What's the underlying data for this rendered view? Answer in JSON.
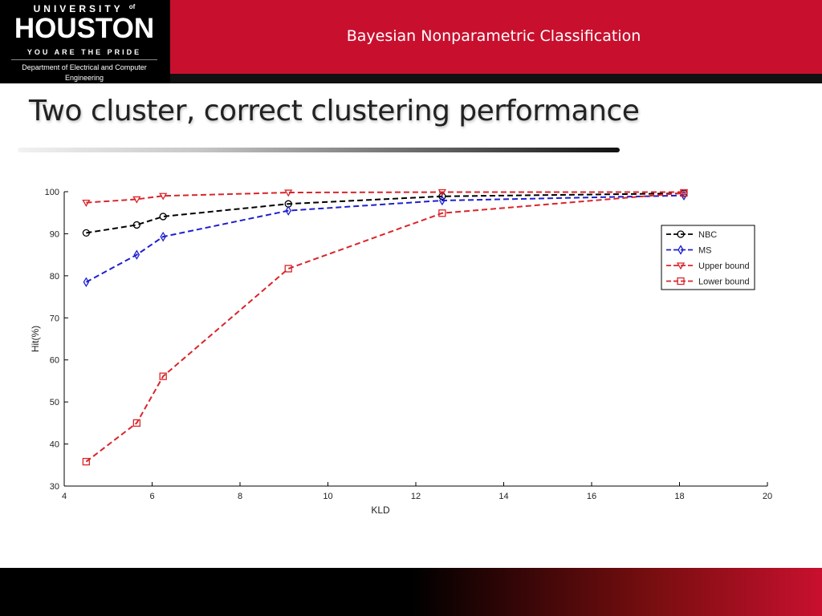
{
  "header": {
    "university_line": "UNIVERSITY",
    "of": "of",
    "houston": "HOUSTON",
    "tagline": "YOU ARE THE PRIDE",
    "department": "Department of Electrical and Computer Engineering",
    "title": "Bayesian Nonparametric Classification"
  },
  "slide": {
    "title": "Two cluster, correct clustering performance"
  },
  "colors": {
    "brand_red": "#c8102e",
    "nbc": "#000000",
    "ms": "#1f1fd0",
    "upper": "#d9252a",
    "lower": "#d9252a"
  },
  "chart_data": {
    "type": "line",
    "xlabel": "KLD",
    "ylabel": "Hit(%)",
    "xlim": [
      4,
      20
    ],
    "ylim": [
      30,
      100
    ],
    "xticks": [
      4,
      6,
      8,
      10,
      12,
      14,
      16,
      18,
      20
    ],
    "yticks": [
      30,
      40,
      50,
      60,
      70,
      80,
      90,
      100
    ],
    "legend_position": "right, upper",
    "series": [
      {
        "name": "NBC",
        "marker": "circle",
        "x": [
          4.5,
          5.65,
          6.25,
          9.1,
          12.6,
          18.1
        ],
        "y": [
          90.2,
          92.1,
          94.1,
          97.1,
          98.9,
          99.6
        ]
      },
      {
        "name": "MS",
        "marker": "diamond",
        "x": [
          4.5,
          5.65,
          6.25,
          9.1,
          12.6,
          18.1
        ],
        "y": [
          78.5,
          85.0,
          89.3,
          95.5,
          97.9,
          99.1
        ]
      },
      {
        "name": "Upper bound",
        "marker": "triangle-down",
        "x": [
          4.5,
          5.65,
          6.25,
          9.1,
          12.6,
          18.1
        ],
        "y": [
          97.4,
          98.2,
          99.0,
          99.8,
          99.9,
          99.9
        ]
      },
      {
        "name": "Lower bound",
        "marker": "square",
        "x": [
          4.5,
          5.65,
          6.25,
          9.1,
          12.6,
          18.1
        ],
        "y": [
          35.8,
          45.0,
          56.1,
          81.7,
          94.9,
          99.7
        ]
      }
    ]
  }
}
